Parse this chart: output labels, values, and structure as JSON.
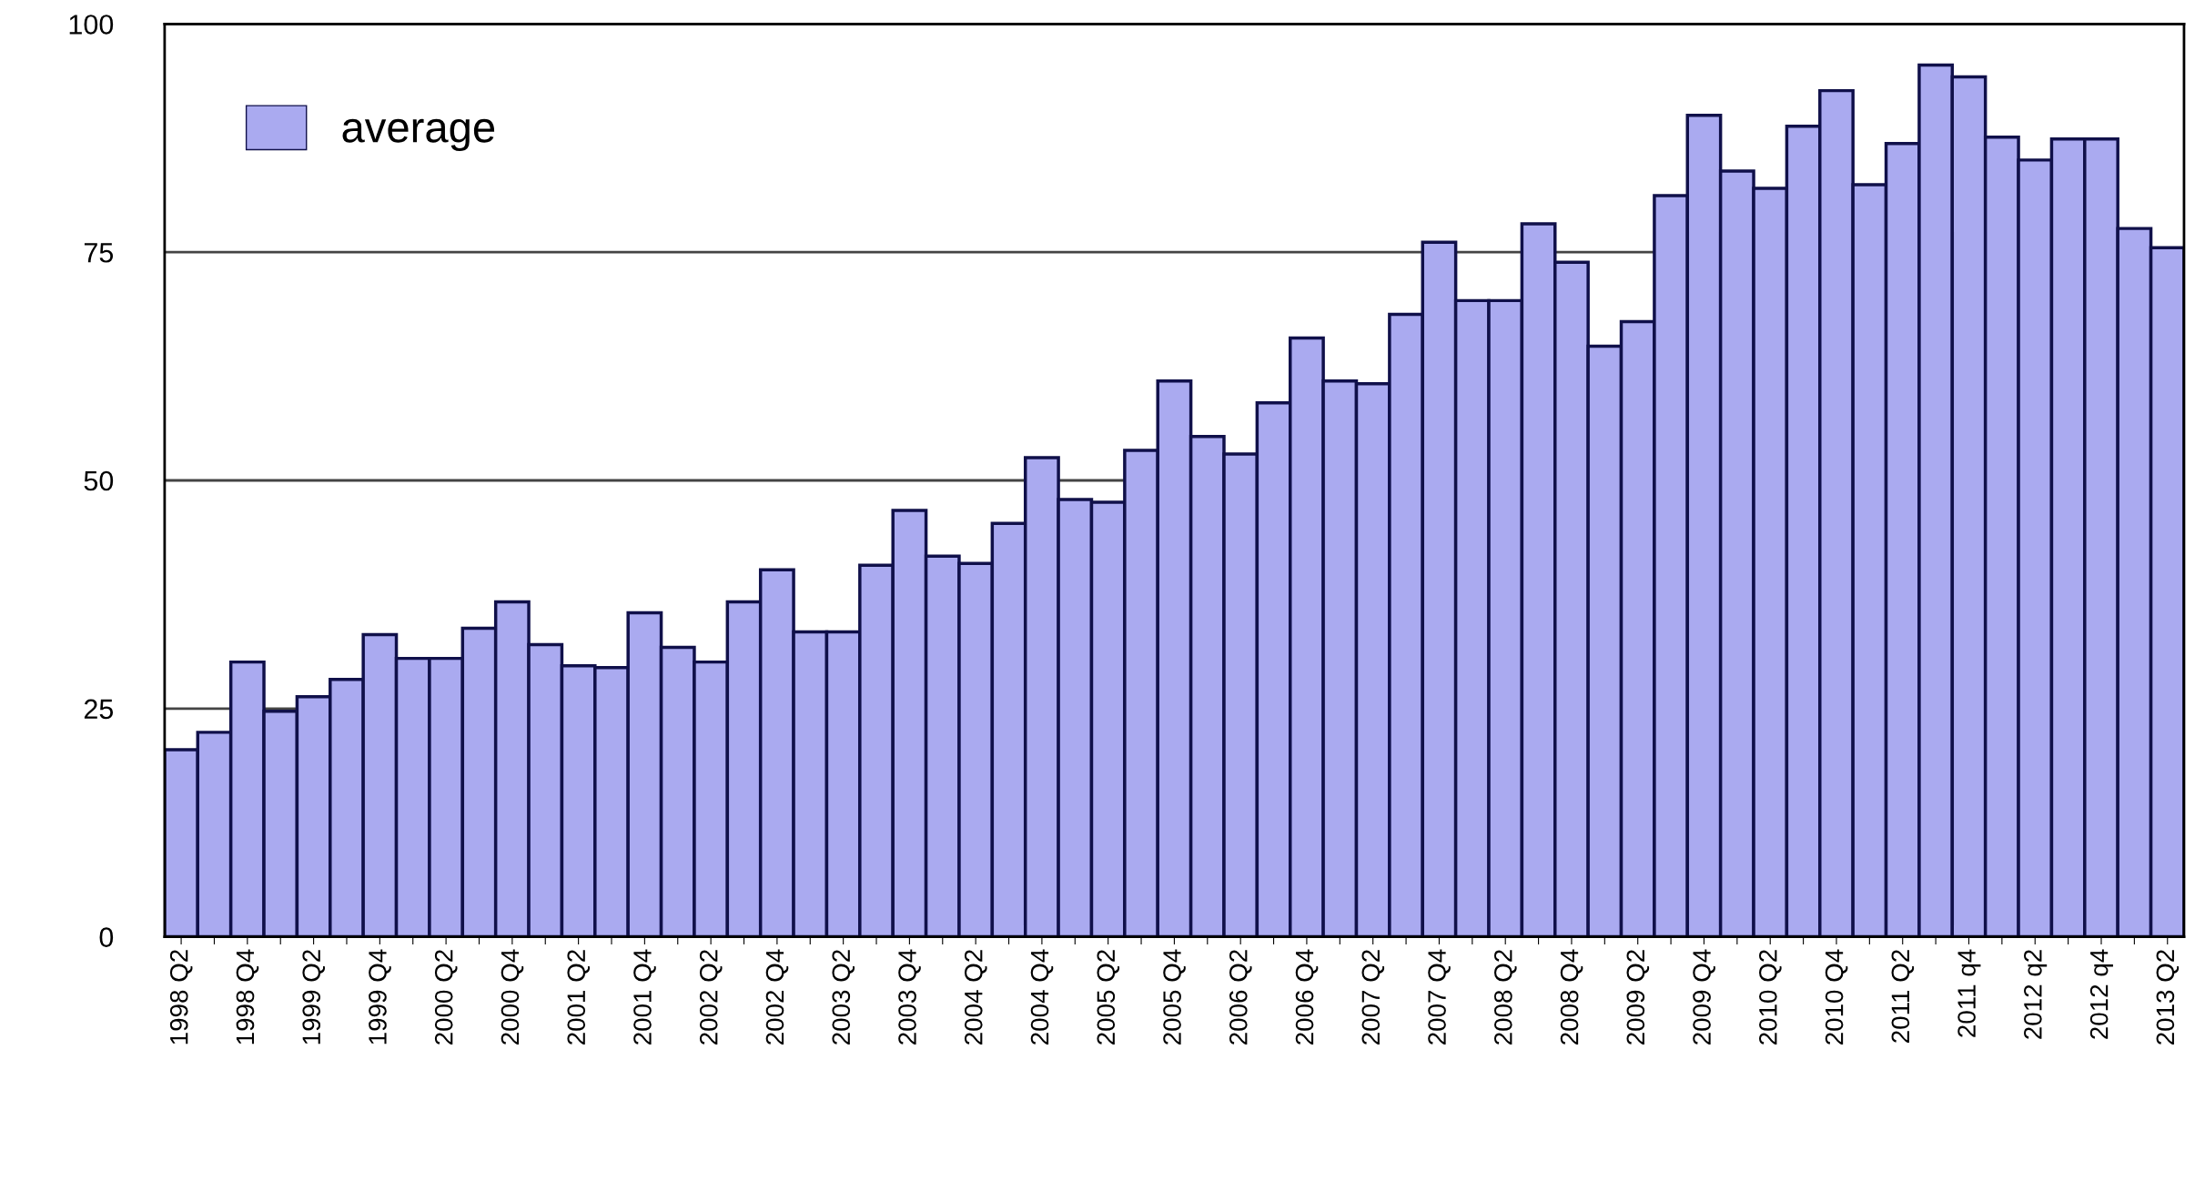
{
  "chart_data": {
    "type": "bar",
    "categories": [
      "1998 Q2",
      null,
      "1998 Q4",
      null,
      "1999 Q2",
      null,
      "1999 Q4",
      null,
      "2000 Q2",
      null,
      "2000 Q4",
      null,
      "2001 Q2",
      null,
      "2001 Q4",
      null,
      "2002 Q2",
      null,
      "2002 Q4",
      null,
      "2003 Q2",
      null,
      "2003 Q4",
      null,
      "2004 Q2",
      null,
      "2004 Q4",
      null,
      "2005 Q2",
      null,
      "2005 Q4",
      null,
      "2006 Q2",
      null,
      "2006 Q4",
      null,
      "2007 Q2",
      null,
      "2007 Q4",
      null,
      "2008 Q2",
      null,
      "2008 Q4",
      null,
      "2009 Q2",
      null,
      "2009 Q4",
      null,
      "2010 Q2",
      null,
      "2010 Q4",
      null,
      "2011 Q2",
      null,
      "2011 q4",
      null,
      "2012 q2",
      null,
      "2012 q4",
      null,
      "2013 Q2"
    ],
    "series": [
      {
        "name": "average",
        "color": "#aaaaf0",
        "values": [
          20.5,
          22.4,
          30.1,
          24.7,
          26.3,
          28.2,
          33.1,
          30.5,
          30.5,
          33.8,
          36.7,
          32.0,
          29.7,
          29.5,
          35.5,
          31.7,
          30.1,
          36.7,
          40.2,
          33.4,
          33.4,
          40.7,
          46.7,
          41.7,
          40.9,
          45.3,
          52.5,
          47.9,
          47.6,
          53.3,
          60.9,
          54.8,
          52.9,
          58.5,
          65.6,
          60.9,
          60.6,
          68.2,
          76.1,
          69.7,
          69.7,
          78.1,
          73.9,
          64.7,
          67.4,
          81.2,
          90.0,
          83.9,
          82.0,
          88.8,
          92.7,
          82.4,
          86.9,
          95.5,
          94.2,
          87.6,
          85.1,
          87.4,
          87.4,
          77.6,
          75.5
        ]
      }
    ],
    "ylim": [
      0,
      100
    ],
    "yticks": [
      0,
      25,
      50,
      75,
      100
    ],
    "grid": "y",
    "legend": "top left"
  }
}
